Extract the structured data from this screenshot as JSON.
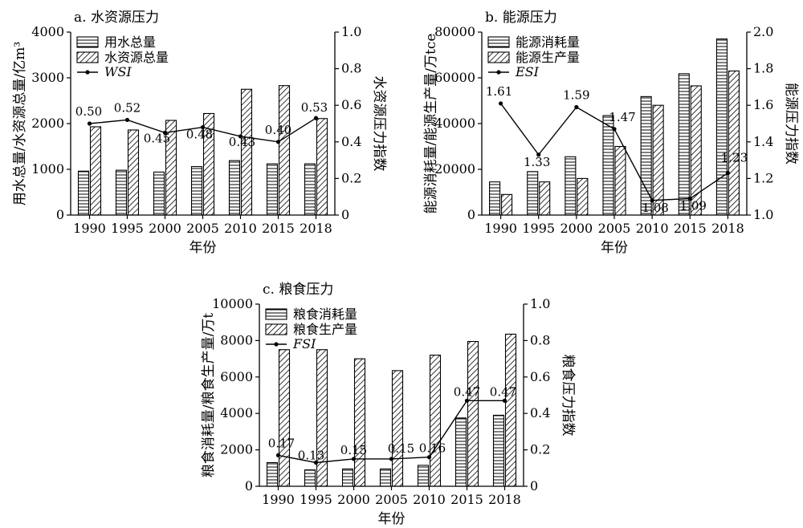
{
  "x_axis_label": "年份",
  "chart_data": [
    {
      "type": "bar",
      "title": "a. 水资源压力",
      "categories": [
        "1990",
        "1995",
        "2000",
        "2005",
        "2010",
        "2015",
        "2018"
      ],
      "ylabel": "用水总量/水资源总量/亿m³",
      "y2label": "水资源压力指数",
      "ylim": [
        0,
        4000
      ],
      "yticks": [
        "0",
        "1000",
        "2000",
        "3000",
        "4000"
      ],
      "y2lim": [
        0,
        1.0
      ],
      "y2ticks": [
        "0",
        "0.2",
        "0.4",
        "0.6",
        "0.8",
        "1.0"
      ],
      "series": [
        {
          "name": "用水总量",
          "pattern": "horizontal",
          "values": [
            960,
            980,
            940,
            1060,
            1190,
            1120,
            1120
          ]
        },
        {
          "name": "水资源总量",
          "pattern": "diagonal",
          "values": [
            1930,
            1860,
            2070,
            2220,
            2750,
            2830,
            2110
          ]
        }
      ],
      "index": {
        "name": "WSI",
        "values": [
          0.5,
          0.52,
          0.45,
          0.48,
          0.43,
          0.4,
          0.53
        ],
        "labels": [
          "0.50",
          "0.52",
          "0.45",
          "0.48",
          "0.43",
          "0.40",
          "0.53"
        ]
      }
    },
    {
      "type": "bar",
      "title": "b. 能源压力",
      "categories": [
        "1990",
        "1995",
        "2000",
        "2005",
        "2010",
        "2015",
        "2018"
      ],
      "ylabel": "能源消耗量/能源生产量/万tce",
      "y2label": "能源压力指数",
      "ylim": [
        0,
        80000
      ],
      "yticks": [
        "0",
        "20000",
        "40000",
        "60000",
        "80000"
      ],
      "y2lim": [
        1.0,
        2.0
      ],
      "y2ticks": [
        "1.0",
        "1.2",
        "1.4",
        "1.6",
        "1.8",
        "2.0"
      ],
      "series": [
        {
          "name": "能源消耗量",
          "pattern": "horizontal",
          "values": [
            14500,
            19000,
            25500,
            43500,
            51800,
            61800,
            77000
          ]
        },
        {
          "name": "能源生产量",
          "pattern": "diagonal",
          "values": [
            9000,
            14500,
            16000,
            30000,
            48000,
            56500,
            63000
          ]
        }
      ],
      "index": {
        "name": "ESI",
        "values": [
          1.61,
          1.33,
          1.59,
          1.47,
          1.08,
          1.09,
          1.23
        ],
        "labels": [
          "1.61",
          "1.33",
          "1.59",
          "1.47",
          "1.08",
          "1.09",
          "1.23"
        ]
      }
    },
    {
      "type": "bar",
      "title": "c. 粮食压力",
      "categories": [
        "1990",
        "1995",
        "2000",
        "2005",
        "2010",
        "2015",
        "2018"
      ],
      "ylabel": "粮食消耗量/粮食生产量/万t",
      "y2label": "粮食压力指数",
      "ylim": [
        0,
        10000
      ],
      "yticks": [
        "0",
        "2000",
        "4000",
        "6000",
        "8000",
        "10000"
      ],
      "y2lim": [
        0,
        1.0
      ],
      "y2ticks": [
        "0",
        "0.2",
        "0.4",
        "0.6",
        "0.8",
        "1.0"
      ],
      "series": [
        {
          "name": "粮食消耗量",
          "pattern": "horizontal",
          "values": [
            1300,
            900,
            950,
            950,
            1150,
            3750,
            3900
          ]
        },
        {
          "name": "粮食生产量",
          "pattern": "diagonal",
          "values": [
            7500,
            7500,
            7000,
            6350,
            7200,
            7950,
            8350
          ]
        }
      ],
      "index": {
        "name": "FSI",
        "values": [
          0.17,
          0.13,
          0.15,
          0.15,
          0.16,
          0.47,
          0.47
        ],
        "labels": [
          "0.17",
          "0.13",
          "0.15",
          "0.15",
          "0.16",
          "0.47",
          "0.47"
        ]
      }
    }
  ]
}
